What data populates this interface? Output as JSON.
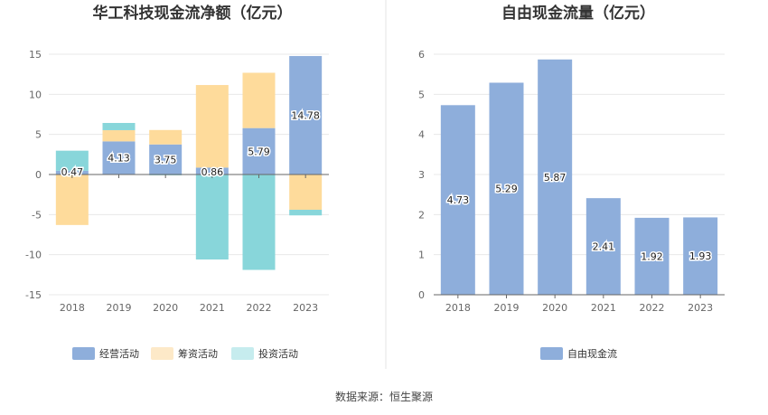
{
  "colors": {
    "operating": "#8eaedb",
    "financing": "#fedb9b",
    "investing": "#88d6da",
    "investing_legend": "#c6ecee",
    "financing_legend": "#fde9c8",
    "free_cash": "#8eaedb",
    "divider": "#e6e6e6",
    "grid": "#e8e8e8",
    "axis": "#666666"
  },
  "chart_data": [
    {
      "type": "bar",
      "title": "华工科技现金流净额（亿元）",
      "categories": [
        "2018",
        "2019",
        "2020",
        "2021",
        "2022",
        "2023"
      ],
      "ylim": [
        -15,
        15
      ],
      "yticks": [
        -15,
        -10,
        -5,
        0,
        5,
        10,
        15
      ],
      "series": [
        {
          "name": "经营活动",
          "values": [
            0.47,
            4.13,
            3.75,
            0.86,
            5.79,
            14.78
          ]
        },
        {
          "name": "筹资活动",
          "values": [
            -6.3,
            1.4,
            1.8,
            10.3,
            6.9,
            -4.4
          ]
        },
        {
          "name": "投资活动",
          "values": [
            2.5,
            0.9,
            -0.1,
            -10.6,
            -11.9,
            -0.7
          ]
        }
      ],
      "data_labels": [
        "0.47",
        "4.13",
        "3.75",
        "0.86",
        "5.79",
        "14.78"
      ],
      "legend": "bottom"
    },
    {
      "type": "bar",
      "title": "自由现金流量（亿元）",
      "categories": [
        "2018",
        "2019",
        "2020",
        "2021",
        "2022",
        "2023"
      ],
      "ylim": [
        0,
        6
      ],
      "yticks": [
        0,
        1,
        2,
        3,
        4,
        5,
        6
      ],
      "series": [
        {
          "name": "自由现金流",
          "values": [
            4.73,
            5.29,
            5.87,
            2.41,
            1.92,
            1.93
          ]
        }
      ],
      "data_labels": [
        "4.73",
        "5.29",
        "5.87",
        "2.41",
        "1.92",
        "1.93"
      ],
      "legend": "bottom"
    }
  ],
  "footer": {
    "source": "数据来源：恒生聚源"
  }
}
